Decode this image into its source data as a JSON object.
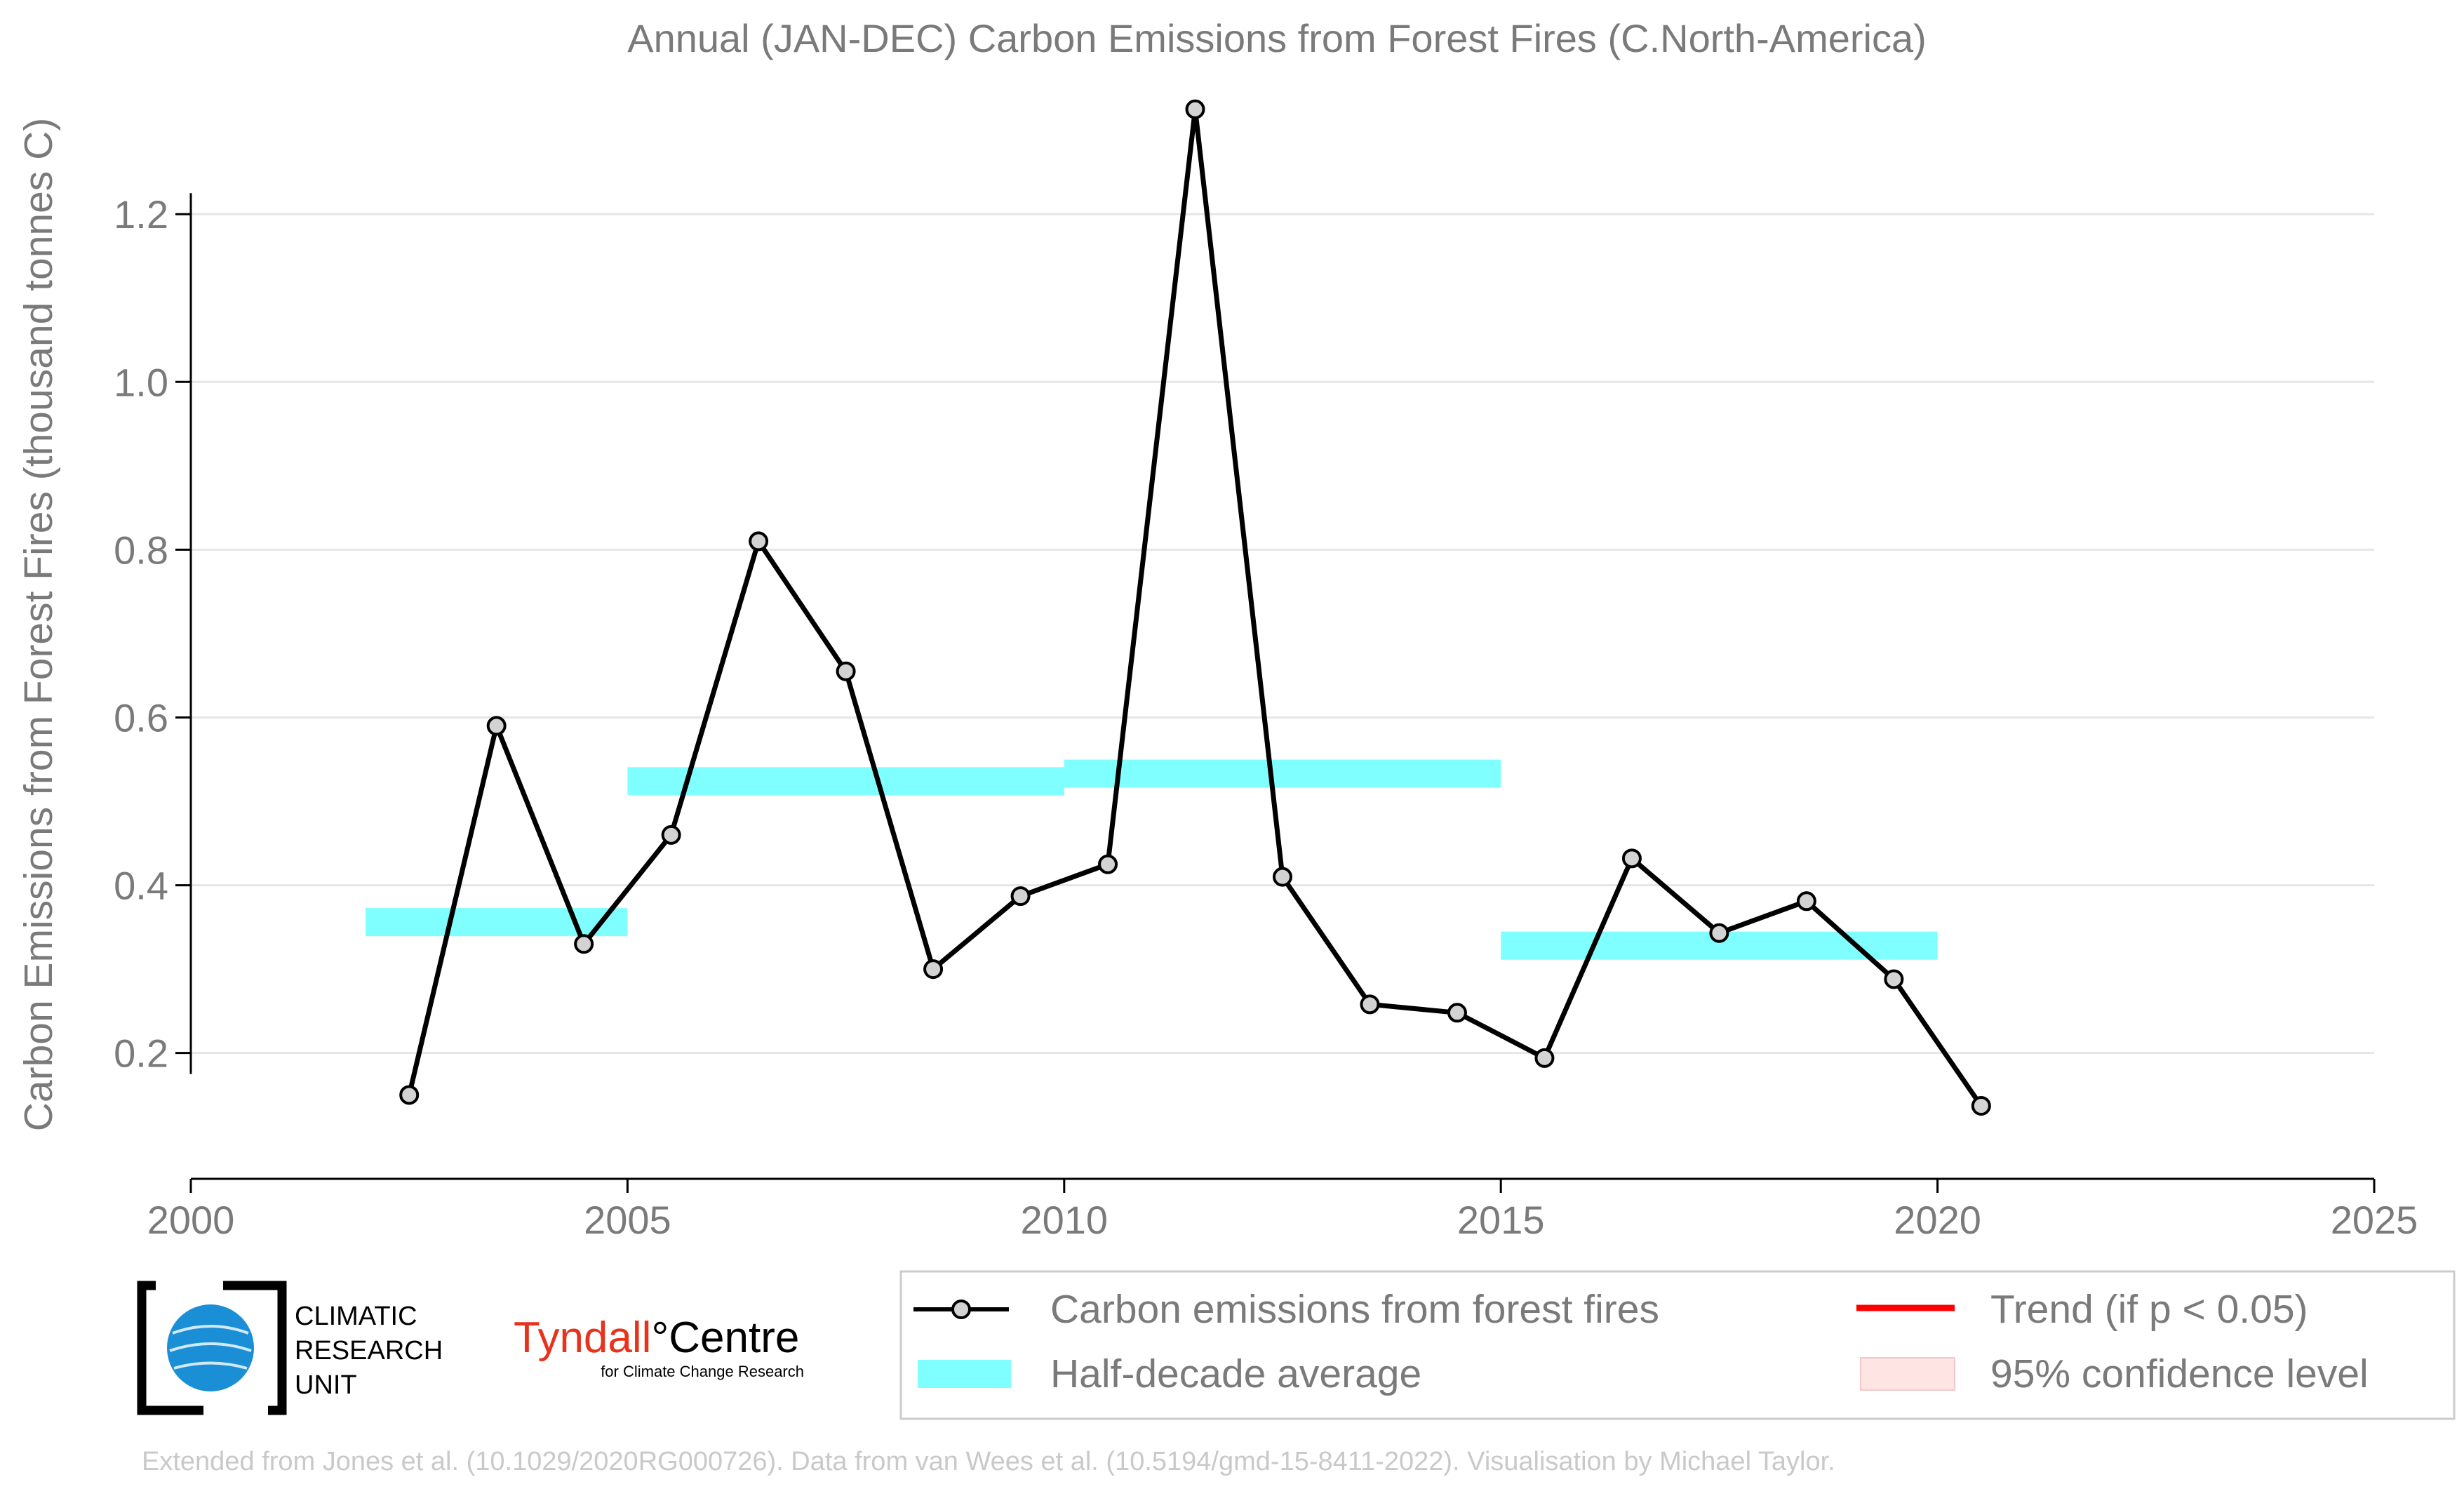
{
  "chart_data": {
    "type": "line",
    "title": "Annual (JAN-DEC) Carbon Emissions from Forest Fires (C.North-America)",
    "ylabel": "Carbon Emissions from Forest Fires (thousand tonnes C)",
    "xlabel": "",
    "xlim": [
      2000,
      2025
    ],
    "ylim": [
      0.05,
      1.38
    ],
    "xticks": [
      2000,
      2005,
      2010,
      2015,
      2020,
      2025
    ],
    "xtick_labels": [
      "2000",
      "2005",
      "2010",
      "2015",
      "2020",
      "2025"
    ],
    "yticks": [
      0.2,
      0.4,
      0.6,
      0.8,
      1.0,
      1.2
    ],
    "ytick_labels": [
      "0.2",
      "0.4",
      "0.6",
      "0.8",
      "1.0",
      "1.2"
    ],
    "grid": "horizontal",
    "series": [
      {
        "name": "Carbon emissions from forest fires",
        "color": "#000000",
        "marker_fill": "#d3d3d3",
        "x": [
          2002.5,
          2003.5,
          2004.5,
          2005.5,
          2006.5,
          2007.5,
          2008.5,
          2009.5,
          2010.5,
          2011.5,
          2012.5,
          2013.5,
          2014.5,
          2015.5,
          2016.5,
          2017.5,
          2018.5,
          2019.5,
          2020.5
        ],
        "values": [
          0.15,
          0.59,
          0.33,
          0.46,
          0.81,
          0.655,
          0.3,
          0.387,
          0.425,
          1.325,
          0.41,
          0.258,
          0.248,
          0.194,
          0.432,
          0.343,
          0.381,
          0.288,
          0.137
        ]
      }
    ],
    "half_decade_average": {
      "name": "Half-decade average",
      "color": "#7fffff",
      "segments": [
        {
          "x_start": 2002,
          "x_end": 2005,
          "value": 0.356
        },
        {
          "x_start": 2005,
          "x_end": 2010,
          "value": 0.524
        },
        {
          "x_start": 2010,
          "x_end": 2015,
          "value": 0.533
        },
        {
          "x_start": 2015,
          "x_end": 2020,
          "value": 0.328
        }
      ]
    },
    "legend": {
      "placement": "bottom-right",
      "entries": [
        {
          "label": "Carbon emissions from forest fires",
          "symbol": "line-marker",
          "color": "#000000"
        },
        {
          "label": "Trend (if p < 0.05)",
          "symbol": "line",
          "color": "#ff0000"
        },
        {
          "label": "Half-decade average",
          "symbol": "band",
          "color": "#7fffff"
        },
        {
          "label": "95% confidence level",
          "symbol": "patch",
          "color": "#ffe4e4"
        }
      ]
    }
  },
  "logos": {
    "cru": {
      "line1": "CLIMATIC",
      "line2": "RESEARCH",
      "line3": "UNIT"
    },
    "tyndall": {
      "name_red": "Tyndall",
      "degree": "°",
      "name_black": "Centre",
      "subtitle": "for Climate Change Research"
    }
  },
  "footer": {
    "credit": "Extended from Jones et al. (10.1029/2020RG000726). Data from van Wees et al. (10.5194/gmd-15-8411-2022). Visualisation by Michael Taylor."
  }
}
